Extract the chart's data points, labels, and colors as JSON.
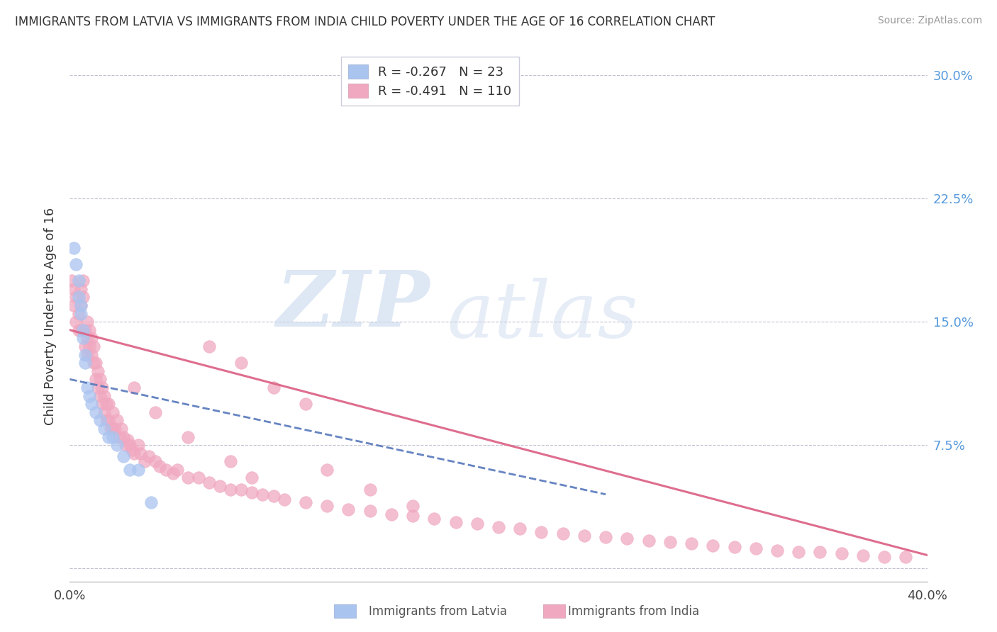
{
  "title": "IMMIGRANTS FROM LATVIA VS IMMIGRANTS FROM INDIA CHILD POVERTY UNDER THE AGE OF 16 CORRELATION CHART",
  "source": "Source: ZipAtlas.com",
  "ylabel": "Child Poverty Under the Age of 16",
  "ytick_vals": [
    0.0,
    0.075,
    0.15,
    0.225,
    0.3
  ],
  "ytick_labels": [
    "",
    "7.5%",
    "15.0%",
    "22.5%",
    "30.0%"
  ],
  "xmin": 0.0,
  "xmax": 0.4,
  "ymin": -0.008,
  "ymax": 0.315,
  "latvia_R": -0.267,
  "latvia_N": 23,
  "india_R": -0.491,
  "india_N": 110,
  "latvia_color": "#aac4f0",
  "india_color": "#f0a8c0",
  "latvia_edge_color": "#8aaad8",
  "india_edge_color": "#d888a8",
  "latvia_line_color": "#5577bb",
  "india_line_color": "#dd6688",
  "legend_label_latvia": "Immigrants from Latvia",
  "legend_label_india": "Immigrants from India",
  "latvia_line_x0": 0.0,
  "latvia_line_y0": 0.115,
  "latvia_line_x1": 0.25,
  "latvia_line_y1": 0.045,
  "india_line_x0": 0.0,
  "india_line_y0": 0.145,
  "india_line_x1": 0.4,
  "india_line_y1": 0.008,
  "latvia_x": [
    0.002,
    0.003,
    0.004,
    0.004,
    0.005,
    0.005,
    0.006,
    0.006,
    0.007,
    0.007,
    0.008,
    0.009,
    0.01,
    0.012,
    0.014,
    0.016,
    0.018,
    0.02,
    0.022,
    0.025,
    0.028,
    0.032,
    0.038
  ],
  "latvia_y": [
    0.195,
    0.185,
    0.175,
    0.165,
    0.16,
    0.155,
    0.145,
    0.14,
    0.13,
    0.125,
    0.11,
    0.105,
    0.1,
    0.095,
    0.09,
    0.085,
    0.08,
    0.08,
    0.075,
    0.068,
    0.06,
    0.06,
    0.04
  ],
  "india_x": [
    0.001,
    0.002,
    0.002,
    0.003,
    0.003,
    0.004,
    0.004,
    0.005,
    0.005,
    0.005,
    0.006,
    0.006,
    0.007,
    0.007,
    0.008,
    0.008,
    0.008,
    0.009,
    0.009,
    0.01,
    0.01,
    0.011,
    0.011,
    0.012,
    0.012,
    0.013,
    0.013,
    0.014,
    0.014,
    0.015,
    0.015,
    0.016,
    0.016,
    0.017,
    0.017,
    0.018,
    0.018,
    0.019,
    0.02,
    0.02,
    0.021,
    0.022,
    0.023,
    0.024,
    0.025,
    0.026,
    0.027,
    0.028,
    0.029,
    0.03,
    0.032,
    0.033,
    0.035,
    0.037,
    0.04,
    0.042,
    0.045,
    0.048,
    0.05,
    0.055,
    0.06,
    0.065,
    0.07,
    0.075,
    0.08,
    0.085,
    0.09,
    0.095,
    0.1,
    0.11,
    0.12,
    0.13,
    0.14,
    0.15,
    0.16,
    0.17,
    0.18,
    0.19,
    0.2,
    0.21,
    0.22,
    0.23,
    0.24,
    0.25,
    0.26,
    0.27,
    0.28,
    0.29,
    0.3,
    0.31,
    0.32,
    0.33,
    0.34,
    0.35,
    0.36,
    0.37,
    0.38,
    0.39,
    0.065,
    0.08,
    0.095,
    0.11,
    0.03,
    0.04,
    0.055,
    0.12,
    0.075,
    0.085,
    0.14,
    0.16
  ],
  "india_y": [
    0.175,
    0.17,
    0.16,
    0.165,
    0.15,
    0.155,
    0.145,
    0.17,
    0.16,
    0.145,
    0.175,
    0.165,
    0.145,
    0.135,
    0.15,
    0.14,
    0.13,
    0.145,
    0.135,
    0.14,
    0.13,
    0.135,
    0.125,
    0.125,
    0.115,
    0.12,
    0.11,
    0.115,
    0.105,
    0.11,
    0.1,
    0.105,
    0.095,
    0.1,
    0.09,
    0.1,
    0.09,
    0.085,
    0.095,
    0.085,
    0.085,
    0.09,
    0.08,
    0.085,
    0.08,
    0.075,
    0.078,
    0.075,
    0.072,
    0.07,
    0.075,
    0.07,
    0.065,
    0.068,
    0.065,
    0.062,
    0.06,
    0.058,
    0.06,
    0.055,
    0.055,
    0.052,
    0.05,
    0.048,
    0.048,
    0.046,
    0.045,
    0.044,
    0.042,
    0.04,
    0.038,
    0.036,
    0.035,
    0.033,
    0.032,
    0.03,
    0.028,
    0.027,
    0.025,
    0.024,
    0.022,
    0.021,
    0.02,
    0.019,
    0.018,
    0.017,
    0.016,
    0.015,
    0.014,
    0.013,
    0.012,
    0.011,
    0.01,
    0.01,
    0.009,
    0.008,
    0.007,
    0.007,
    0.135,
    0.125,
    0.11,
    0.1,
    0.11,
    0.095,
    0.08,
    0.06,
    0.065,
    0.055,
    0.048,
    0.038
  ]
}
